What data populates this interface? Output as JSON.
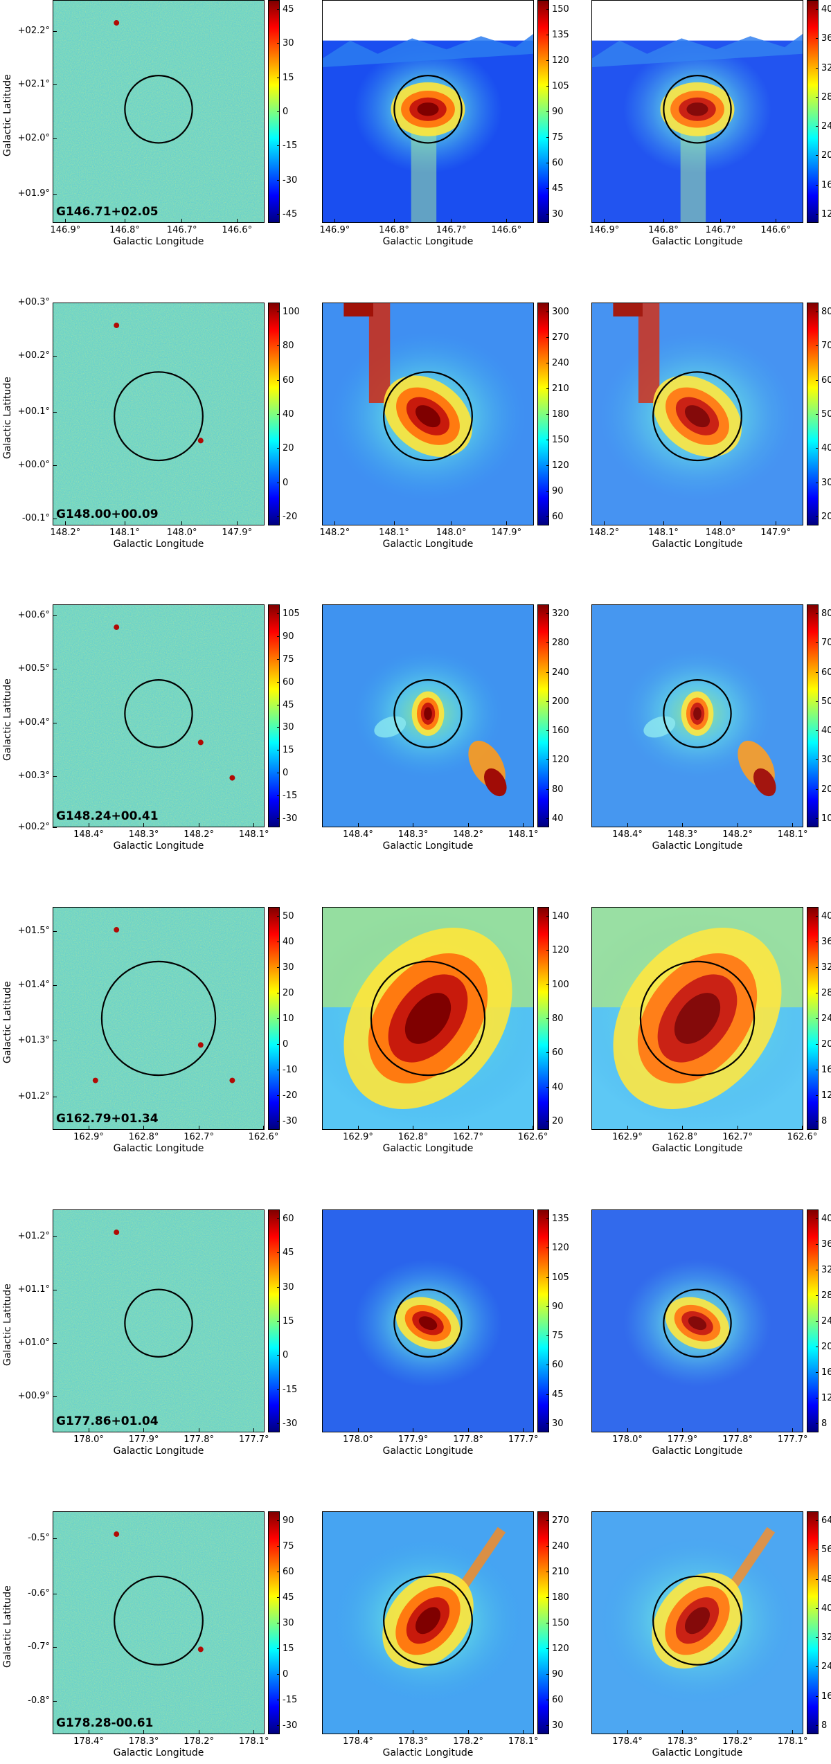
{
  "figure": {
    "xlabel": "Galactic Longitude",
    "ylabel": "Galactic Latitude",
    "rows": [
      {
        "source": "G146.71+02.05",
        "xticks": [
          "146.9°",
          "146.8°",
          "146.7°",
          "146.6°"
        ],
        "yticks": [
          "+02.2°",
          "+02.1°",
          "+02.0°",
          "+01.9°"
        ],
        "colorbars": [
          [
            "45",
            "30",
            "15",
            "0",
            "-15",
            "-30",
            "-45"
          ],
          [
            "150",
            "135",
            "120",
            "105",
            "90",
            "75",
            "60",
            "45",
            "30"
          ],
          [
            "40",
            "36",
            "32",
            "28",
            "24",
            "20",
            "16",
            "12"
          ]
        ]
      },
      {
        "source": "G148.00+00.09",
        "xticks": [
          "148.2°",
          "148.1°",
          "148.0°",
          "147.9°"
        ],
        "yticks": [
          "+00.3°",
          "+00.2°",
          "+00.1°",
          "+00.0°",
          "-00.1°"
        ],
        "colorbars": [
          [
            "100",
            "80",
            "60",
            "40",
            "20",
            "0",
            "-20"
          ],
          [
            "300",
            "270",
            "240",
            "210",
            "180",
            "150",
            "120",
            "90",
            "60"
          ],
          [
            "80",
            "70",
            "60",
            "50",
            "40",
            "30",
            "20"
          ]
        ]
      },
      {
        "source": "G148.24+00.41",
        "xticks": [
          "148.4°",
          "148.3°",
          "148.2°",
          "148.1°"
        ],
        "yticks": [
          "+00.6°",
          "+00.5°",
          "+00.4°",
          "+00.3°",
          "+00.2°"
        ],
        "colorbars": [
          [
            "105",
            "90",
            "75",
            "60",
            "45",
            "30",
            "15",
            "0",
            "-15",
            "-30"
          ],
          [
            "320",
            "280",
            "240",
            "200",
            "160",
            "120",
            "80",
            "40"
          ],
          [
            "80",
            "70",
            "60",
            "50",
            "40",
            "30",
            "20",
            "10"
          ]
        ]
      },
      {
        "source": "G162.79+01.34",
        "xticks": [
          "162.9°",
          "162.8°",
          "162.7°",
          "162.6°"
        ],
        "yticks": [
          "+01.5°",
          "+01.4°",
          "+01.3°",
          "+01.2°"
        ],
        "colorbars": [
          [
            "50",
            "40",
            "30",
            "20",
            "10",
            "0",
            "-10",
            "-20",
            "-30"
          ],
          [
            "140",
            "120",
            "100",
            "80",
            "60",
            "40",
            "20"
          ],
          [
            "40",
            "36",
            "32",
            "28",
            "24",
            "20",
            "16",
            "12",
            "8"
          ]
        ]
      },
      {
        "source": "G177.86+01.04",
        "xticks": [
          "178.0°",
          "177.9°",
          "177.8°",
          "177.7°"
        ],
        "yticks": [
          "+01.2°",
          "+01.1°",
          "+01.0°",
          "+00.9°"
        ],
        "colorbars": [
          [
            "60",
            "45",
            "30",
            "15",
            "0",
            "-15",
            "-30"
          ],
          [
            "135",
            "120",
            "105",
            "90",
            "75",
            "60",
            "45",
            "30"
          ],
          [
            "40",
            "36",
            "32",
            "28",
            "24",
            "20",
            "16",
            "12",
            "8"
          ]
        ]
      },
      {
        "source": "G178.28-00.61",
        "xticks": [
          "178.4°",
          "178.3°",
          "178.2°",
          "178.1°"
        ],
        "yticks": [
          "-0.5°",
          "-0.6°",
          "-0.7°",
          "-0.8°"
        ],
        "colorbars": [
          [
            "90",
            "75",
            "60",
            "45",
            "30",
            "15",
            "0",
            "-15",
            "-30"
          ],
          [
            "270",
            "240",
            "210",
            "180",
            "150",
            "120",
            "90",
            "60",
            "30"
          ],
          [
            "64",
            "56",
            "48",
            "40",
            "32",
            "24",
            "16",
            "8"
          ]
        ]
      }
    ]
  }
}
